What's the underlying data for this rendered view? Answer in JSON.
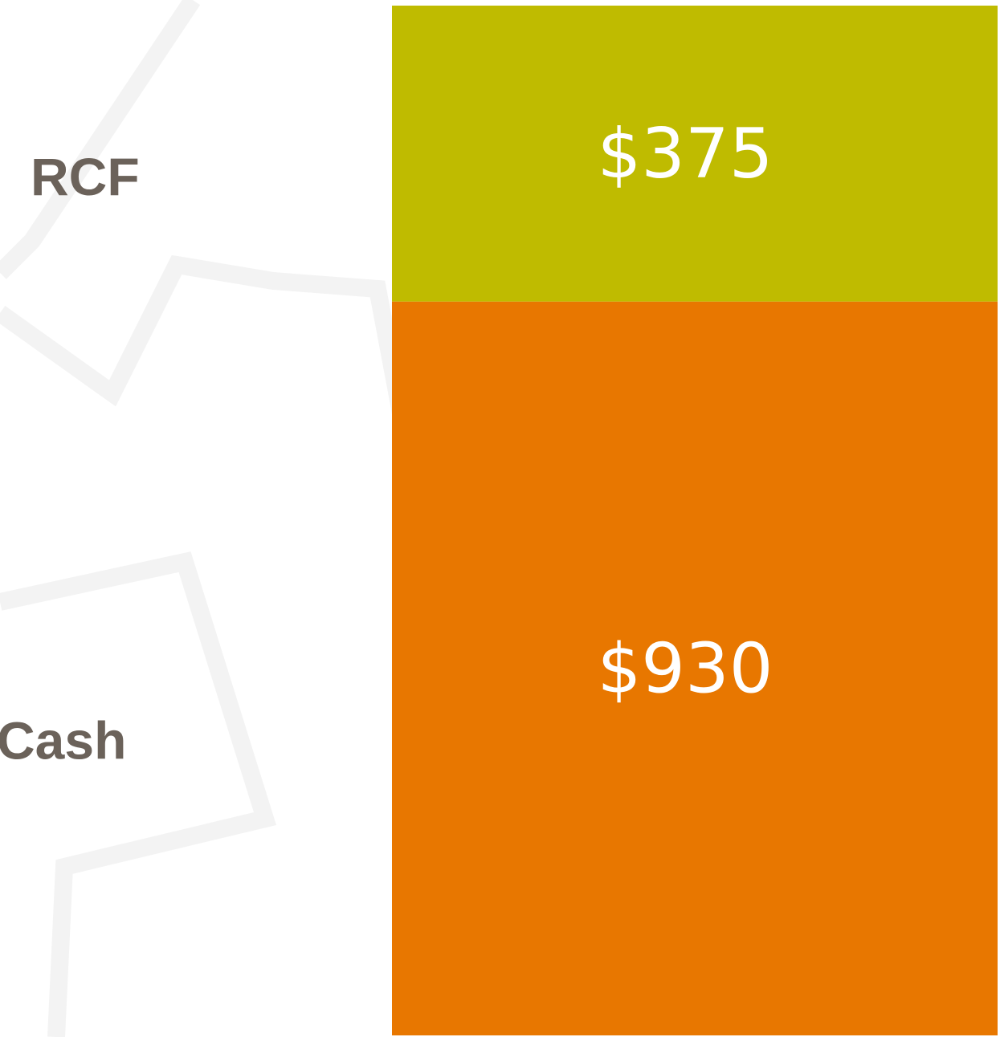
{
  "chart_data": {
    "type": "bar",
    "stacked": true,
    "categories": [
      null
    ],
    "series": [
      {
        "name": "Cash",
        "color": "#e87700",
        "values": [
          930
        ],
        "value_labels": [
          "$930"
        ]
      },
      {
        "name": "RCF",
        "color": "#bfbb00",
        "values": [
          375
        ],
        "value_labels": [
          "$375"
        ]
      }
    ]
  }
}
